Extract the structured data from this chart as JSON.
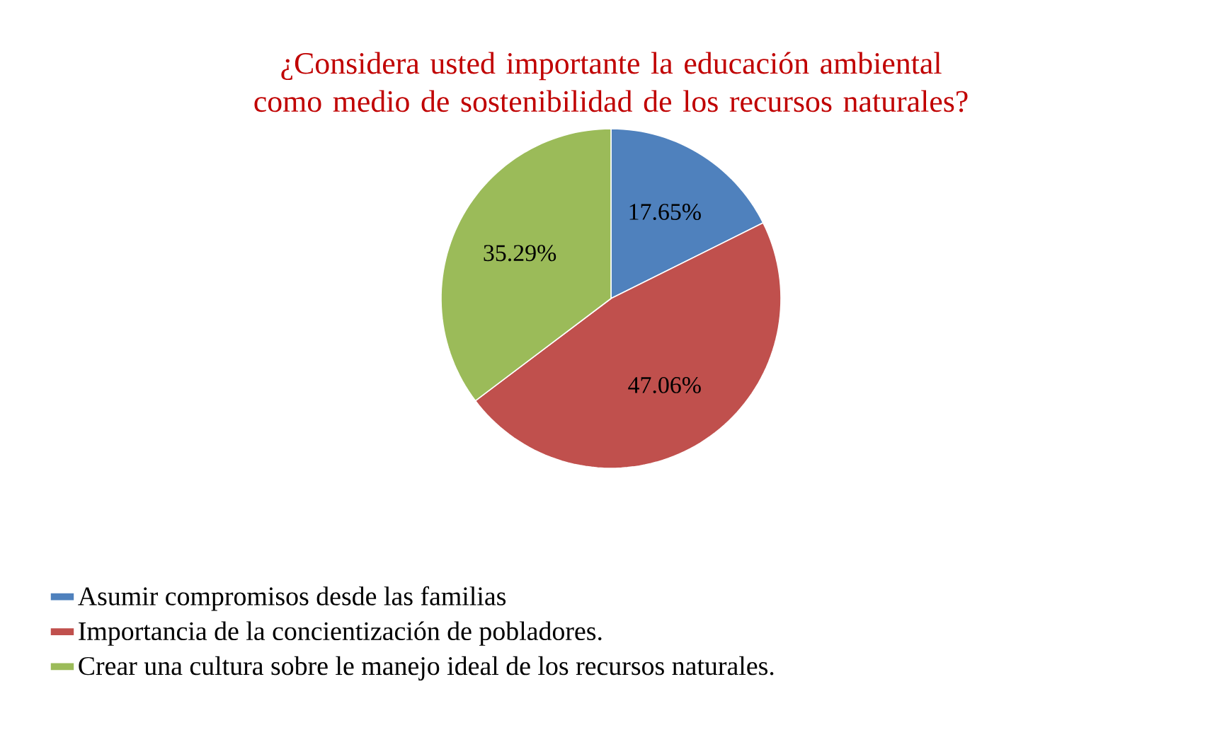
{
  "chart_data": {
    "type": "pie",
    "title": "¿Considera usted importante la educación ambiental como medio de sostenibilidad de los recursos naturales?",
    "categories": [
      "Asumir compromisos desde las familias",
      "Importancia de la concientización de pobladores.",
      "Crear una cultura sobre le manejo ideal de los recursos naturales."
    ],
    "values": [
      17.65,
      47.06,
      35.29
    ],
    "value_labels": [
      "17.65%",
      "47.06%",
      "35.29%"
    ],
    "colors": [
      "#4f81bd",
      "#c0504d",
      "#9bbb59"
    ],
    "legend": "bottom"
  }
}
